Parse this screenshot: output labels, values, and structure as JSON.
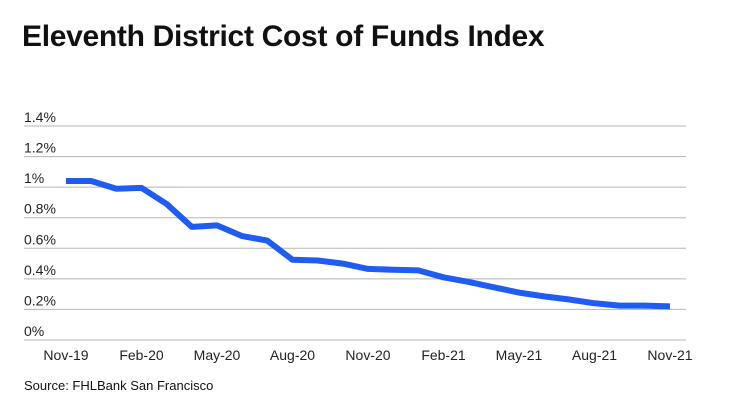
{
  "chart_data": {
    "type": "line",
    "title": "Eleventh District Cost of Funds Index",
    "source": "Source: FHLBank San Francisco",
    "xlabel": "",
    "ylabel": "",
    "ylim": [
      0,
      1.4
    ],
    "grid": true,
    "y_ticks": [
      "0%",
      "0.2%",
      "0.4%",
      "0.6%",
      "0.8%",
      "1%",
      "1.2%",
      "1.4%"
    ],
    "y_tick_values": [
      0,
      0.2,
      0.4,
      0.6,
      0.8,
      1.0,
      1.2,
      1.4
    ],
    "x_ticks": [
      "Nov-19",
      "Feb-20",
      "May-20",
      "Aug-20",
      "Nov-20",
      "Feb-21",
      "May-21",
      "Aug-21",
      "Nov-21"
    ],
    "x": [
      "Nov-19",
      "Dec-19",
      "Jan-20",
      "Feb-20",
      "Mar-20",
      "Apr-20",
      "May-20",
      "Jun-20",
      "Jul-20",
      "Aug-20",
      "Sep-20",
      "Oct-20",
      "Nov-20",
      "Dec-20",
      "Jan-21",
      "Feb-21",
      "Mar-21",
      "Apr-21",
      "May-21",
      "Jun-21",
      "Jul-21",
      "Aug-21",
      "Sep-21",
      "Oct-21",
      "Nov-21"
    ],
    "series": [
      {
        "color": "#1f5cf2",
        "values": [
          1.04,
          1.04,
          0.99,
          0.995,
          0.89,
          0.74,
          0.75,
          0.68,
          0.65,
          0.525,
          0.52,
          0.5,
          0.465,
          0.46,
          0.455,
          0.41,
          0.38,
          0.345,
          0.31,
          0.285,
          0.265,
          0.24,
          0.225,
          0.225,
          0.22
        ]
      }
    ]
  }
}
